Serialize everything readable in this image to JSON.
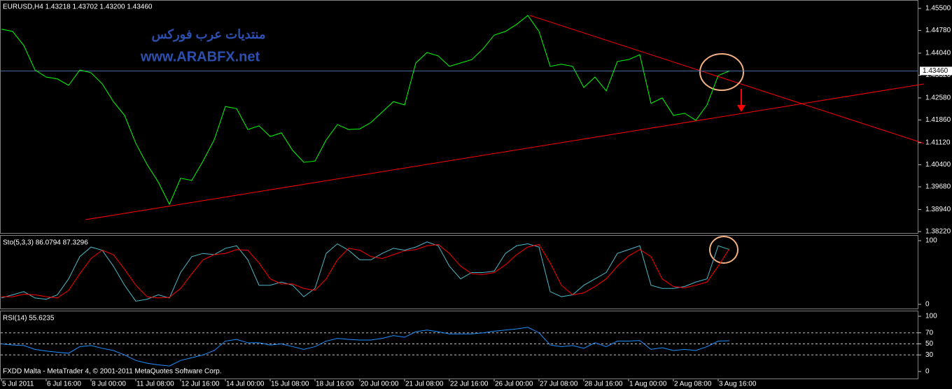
{
  "chart_data": [
    {
      "type": "line",
      "title": "EURUSD,H4  1.43218 1.43702 1.43200 1.43460",
      "watermark": [
        "منتديات عرب فوركس",
        "www.ARABFX.net"
      ],
      "categories": [
        "5 Jul 2011",
        null,
        null,
        null,
        "6 Jul 16:00",
        null,
        null,
        null,
        "8 Jul 00:00",
        null,
        null,
        null,
        "11 Jul 08:00",
        null,
        null,
        null,
        "12 Jul 16:00",
        null,
        null,
        null,
        "14 Jul 00:00",
        null,
        null,
        null,
        "15 Jul 08:00",
        null,
        null,
        null,
        "18 Jul 16:00",
        null,
        null,
        null,
        "20 Jul 00:00",
        null,
        null,
        null,
        "21 Jul 08:00",
        null,
        null,
        null,
        "22 Jul 16:00",
        null,
        null,
        null,
        "26 Jul 00:00",
        null,
        null,
        null,
        "27 Jul 08:00",
        null,
        null,
        null,
        "28 Jul 16:00",
        null,
        null,
        null,
        "1 Aug 00:00",
        null,
        null,
        null,
        "2 Aug 08:00",
        null,
        null,
        null,
        "3 Aug 16:00",
        null
      ],
      "series": [
        {
          "color": "#00ff00",
          "values": [
            1.4482,
            1.4475,
            1.4429,
            1.4349,
            1.4326,
            1.432,
            1.4299,
            1.4349,
            1.434,
            1.4304,
            1.4246,
            1.4201,
            1.411,
            1.4041,
            1.3984,
            1.3911,
            1.3996,
            1.3989,
            1.4052,
            1.4121,
            1.423,
            1.4223,
            1.4155,
            1.4167,
            1.4132,
            1.4144,
            1.4087,
            1.4048,
            1.4052,
            1.4121,
            1.4171,
            1.4155,
            1.4157,
            1.4178,
            1.4212,
            1.4246,
            1.4235,
            1.4372,
            1.4406,
            1.4395,
            1.4361,
            1.4372,
            1.4383,
            1.4418,
            1.4463,
            1.4475,
            1.4498,
            1.4527,
            1.4475,
            1.4361,
            1.4368,
            1.4361,
            1.4292,
            1.4326,
            1.4281,
            1.4377,
            1.4383,
            1.4399,
            1.424,
            1.4258,
            1.4201,
            1.4208,
            1.4185,
            1.4235,
            1.4331,
            1.4346
          ]
        }
      ],
      "last_price": {
        "value": 1.4346,
        "label": "1.43460"
      },
      "ylim": [
        1.3822,
        1.455
      ],
      "yticks": [
        {
          "value": 1.455,
          "label": "1.45500"
        },
        {
          "value": 1.4478,
          "label": "1.44780"
        },
        {
          "value": 1.4404,
          "label": "1.44040"
        },
        {
          "value": 1.4332,
          "label": "1.43320"
        },
        {
          "value": 1.4258,
          "label": "1.42580"
        },
        {
          "value": 1.4186,
          "label": "1.41860"
        },
        {
          "value": 1.4112,
          "label": "1.41120"
        },
        {
          "value": 1.404,
          "label": "1.40400"
        },
        {
          "value": 1.3968,
          "label": "1.39680"
        },
        {
          "value": 1.3894,
          "label": "1.38940"
        },
        {
          "value": 1.3822,
          "label": "1.38220"
        }
      ]
    },
    {
      "type": "line",
      "title": "Sto(5,3,3) 86.0794 87.3296",
      "series": [
        {
          "color": "#4fb8c8",
          "values": [
            10,
            15,
            20,
            10,
            8,
            15,
            40,
            75,
            90,
            85,
            60,
            30,
            5,
            8,
            15,
            10,
            50,
            75,
            80,
            78,
            88,
            92,
            70,
            30,
            30,
            35,
            30,
            12,
            25,
            80,
            95,
            85,
            70,
            70,
            80,
            88,
            85,
            90,
            98,
            92,
            60,
            40,
            50,
            50,
            52,
            80,
            92,
            95,
            90,
            20,
            12,
            15,
            30,
            40,
            50,
            80,
            86,
            92,
            30,
            25,
            25,
            28,
            35,
            40,
            92,
            86.0794
          ]
        },
        {
          "color": "#ff0000",
          "values": [
            12,
            12,
            16,
            15,
            12,
            10,
            22,
            48,
            72,
            85,
            78,
            55,
            30,
            12,
            10,
            11,
            25,
            48,
            70,
            78,
            80,
            86,
            85,
            65,
            40,
            32,
            32,
            25,
            22,
            40,
            70,
            88,
            85,
            75,
            72,
            78,
            84,
            86,
            92,
            94,
            80,
            60,
            48,
            47,
            50,
            62,
            78,
            90,
            94,
            65,
            30,
            15,
            18,
            28,
            40,
            60,
            76,
            86,
            75,
            40,
            28,
            26,
            30,
            35,
            60,
            87.3296
          ]
        }
      ],
      "ylim": [
        0,
        100
      ],
      "yticks": [
        100,
        0
      ]
    },
    {
      "type": "line",
      "title": "RSI(14) 55.6235",
      "series": [
        {
          "color": "#1e90ff",
          "values": [
            50,
            48,
            47,
            40,
            37,
            35,
            33,
            45,
            47,
            42,
            38,
            30,
            20,
            15,
            12,
            10,
            20,
            25,
            30,
            38,
            55,
            58,
            52,
            52,
            48,
            50,
            45,
            40,
            45,
            55,
            60,
            58,
            57,
            57,
            60,
            65,
            62,
            72,
            75,
            72,
            68,
            68,
            68,
            70,
            73,
            75,
            77,
            80,
            70,
            48,
            45,
            47,
            42,
            52,
            45,
            55,
            55,
            56,
            40,
            43,
            38,
            40,
            38,
            45,
            55,
            55.6235
          ]
        }
      ],
      "ylim": [
        0,
        100
      ],
      "yticks": [
        100,
        70,
        50,
        30,
        0
      ],
      "grid": true,
      "footer": "FXDD Malta - MetaTrader 4, © 2001-2011 MetaQuotes Software Corp."
    }
  ]
}
